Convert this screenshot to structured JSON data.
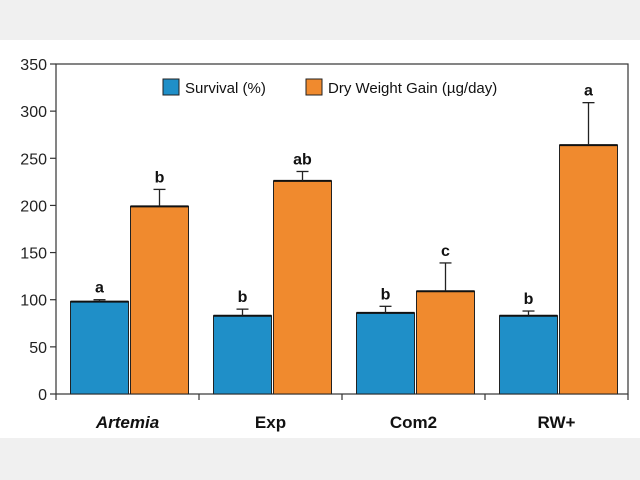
{
  "chart_data": {
    "type": "bar",
    "categories": [
      "Artemia",
      "Exp",
      "Com2",
      "RW+"
    ],
    "category_styles": [
      "italic",
      "normal",
      "normal",
      "normal"
    ],
    "ylim": [
      0,
      350
    ],
    "yticks": [
      0,
      50,
      100,
      150,
      200,
      250,
      300,
      350
    ],
    "legend_position": "top",
    "grid": false,
    "series": [
      {
        "name": "Survival (%)",
        "color": "#1f8fc8",
        "values": [
          98,
          83,
          86,
          83
        ],
        "errors": [
          2,
          7,
          7,
          5
        ],
        "letters": [
          "a",
          "b",
          "b",
          "b"
        ]
      },
      {
        "name": "Dry Weight Gain (µg/day)",
        "color": "#f08a2e",
        "values": [
          199,
          226,
          109,
          264
        ],
        "errors": [
          18,
          10,
          30,
          45
        ],
        "letters": [
          "b",
          "ab",
          "c",
          "a"
        ]
      }
    ]
  }
}
